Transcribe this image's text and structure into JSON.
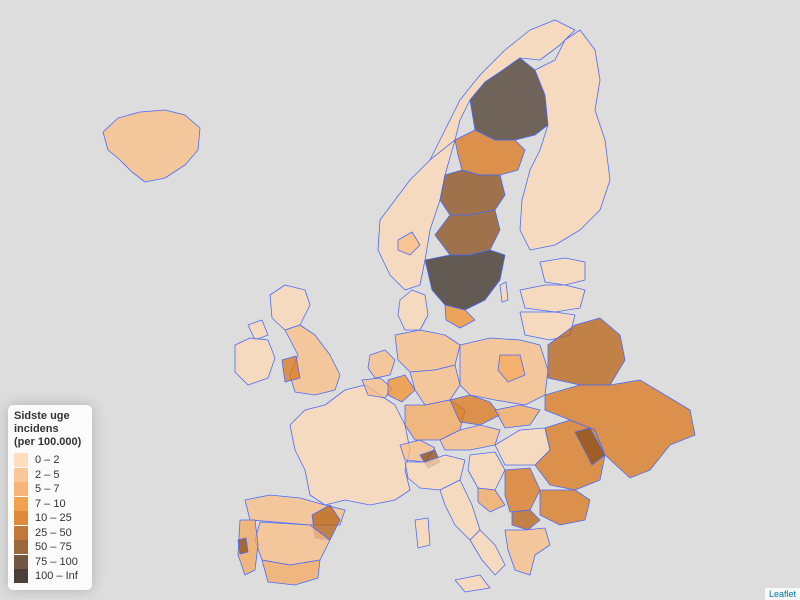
{
  "legend": {
    "title": "Sidste uge\nincidens\n(per 100.000)",
    "items": [
      {
        "label": "0 – 2",
        "color": "#fdd8b4"
      },
      {
        "label": "2 – 5",
        "color": "#f9bd86"
      },
      {
        "label": "5 – 7",
        "color": "#f6a85f"
      },
      {
        "label": "7 – 10",
        "color": "#f0902f"
      },
      {
        "label": "10 – 25",
        "color": "#d9771a"
      },
      {
        "label": "25 – 50",
        "color": "#b76114"
      },
      {
        "label": "50 – 75",
        "color": "#8a4e1a"
      },
      {
        "label": "75 – 100",
        "color": "#5a3a22"
      },
      {
        "label": "100 – Inf",
        "color": "#2b2018"
      }
    ]
  },
  "attribution": "Leaflet"
}
